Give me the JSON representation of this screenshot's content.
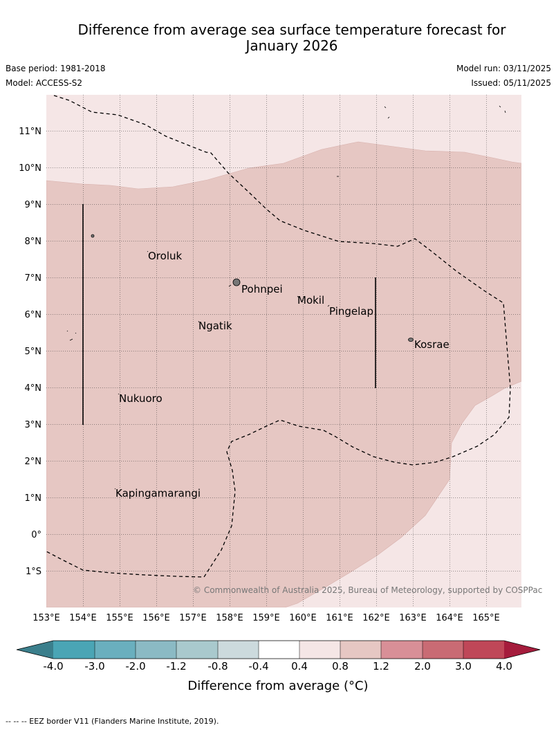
{
  "header": {
    "title_line1": "Difference from average sea surface temperature forecast for",
    "title_line2": "January 2026",
    "base_period": "Base period: 1981-2018",
    "model": "Model: ACCESS-S2",
    "model_run": "Model run: 03/11/2025",
    "issued": "Issued: 05/11/2025"
  },
  "map": {
    "lat_labels": [
      "11°N",
      "10°N",
      "9°N",
      "8°N",
      "7°N",
      "6°N",
      "5°N",
      "4°N",
      "3°N",
      "2°N",
      "1°N",
      "0°",
      "1°S"
    ],
    "lon_labels": [
      "153°E",
      "154°E",
      "155°E",
      "156°E",
      "157°E",
      "158°E",
      "159°E",
      "160°E",
      "161°E",
      "162°E",
      "163°E",
      "164°E",
      "165°E"
    ],
    "places": [
      "Oroluk",
      "Pohnpei",
      "Mokil",
      "Pingelap",
      "Ngatik",
      "Kosrae",
      "Nukuoro",
      "Kapingamarangi"
    ],
    "copyright": "© Commonwealth of Australia 2025, Bureau of Meteorology, supported by COSPPac",
    "colors": {
      "band_0_4_to_0_8": "#f5e6e6",
      "band_0_8_to_1_2": "#e6c7c3",
      "eez": "#000000"
    }
  },
  "colorbar": {
    "ticks": [
      "-4.0",
      "-3.0",
      "-2.0",
      "-1.2",
      "-0.8",
      "-0.4",
      "0.4",
      "0.8",
      "1.2",
      "2.0",
      "3.0",
      "4.0"
    ],
    "label": "Difference from average (°C)",
    "colors": [
      "#3b7f8c",
      "#4aa5b5",
      "#6aafbe",
      "#8bbac4",
      "#a9c9cd",
      "#ccdadd",
      "#ffffff",
      "#f5e6e6",
      "#e6c7c3",
      "#d88f97",
      "#c96b74",
      "#bf4758",
      "#a51c3c"
    ]
  },
  "footer": {
    "note": "--  --  -- EEZ border V11 (Flanders Marine Institute, 2019)."
  }
}
